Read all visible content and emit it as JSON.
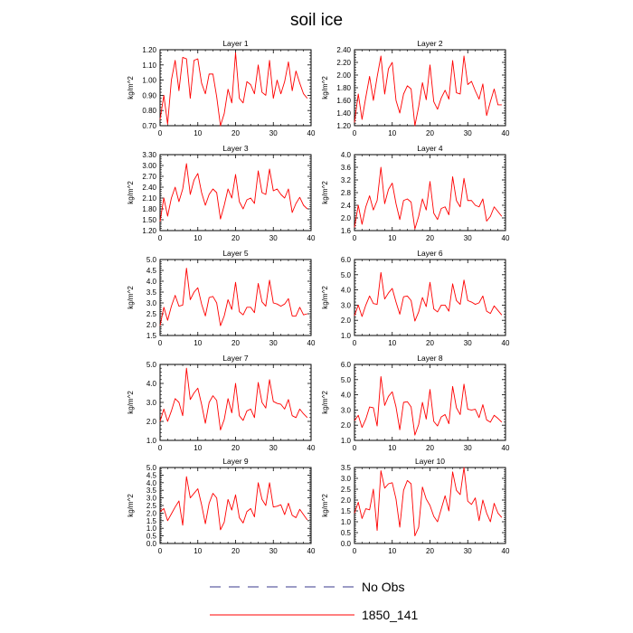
{
  "title": "soil ice",
  "legend": [
    {
      "label": "No Obs",
      "color": "#3a3a8c",
      "dash": true
    },
    {
      "label": "1850_141",
      "color": "#ff0000",
      "dash": false
    }
  ],
  "chart_data": [
    {
      "type": "line",
      "title": "Layer 1",
      "ylabel": "kg/m^2",
      "xlim": [
        0,
        40
      ],
      "ylim": [
        0.7,
        1.2
      ],
      "xticks": [
        0,
        10,
        20,
        30,
        40
      ],
      "yticks": [
        "0.70",
        "0.80",
        "0.90",
        "1.00",
        "1.10",
        "1.20"
      ],
      "series": [
        {
          "name": "1850_141",
          "x": [
            0,
            1,
            2,
            3,
            4,
            5,
            6,
            7,
            8,
            9,
            10,
            11,
            12,
            13,
            14,
            15,
            16,
            17,
            18,
            19,
            20,
            21,
            22,
            23,
            24,
            25,
            26,
            27,
            28,
            29,
            30,
            31,
            32,
            33,
            34,
            35,
            36,
            37,
            38,
            39
          ],
          "values": [
            0.74,
            0.9,
            0.71,
            1.0,
            1.13,
            0.93,
            1.15,
            1.14,
            0.88,
            1.13,
            1.14,
            0.98,
            0.91,
            1.04,
            1.04,
            0.89,
            0.7,
            0.78,
            0.94,
            0.85,
            1.18,
            0.88,
            0.85,
            0.99,
            0.97,
            0.91,
            1.1,
            0.92,
            0.9,
            1.13,
            0.88,
            1.0,
            0.91,
            0.99,
            1.12,
            0.93,
            1.06,
            0.98,
            0.91,
            0.88
          ]
        }
      ]
    },
    {
      "type": "line",
      "title": "Layer 2",
      "ylabel": "kg/m^2",
      "xlim": [
        0,
        40
      ],
      "ylim": [
        1.2,
        2.4
      ],
      "xticks": [
        0,
        10,
        20,
        30,
        40
      ],
      "yticks": [
        "1.20",
        "1.40",
        "1.60",
        "1.80",
        "2.00",
        "2.20",
        "2.40"
      ],
      "series": [
        {
          "name": "1850_141",
          "x": [
            0,
            1,
            2,
            3,
            4,
            5,
            6,
            7,
            8,
            9,
            10,
            11,
            12,
            13,
            14,
            15,
            16,
            17,
            18,
            19,
            20,
            21,
            22,
            23,
            24,
            25,
            26,
            27,
            28,
            29,
            30,
            31,
            32,
            33,
            34,
            35,
            36,
            37,
            38,
            39
          ],
          "values": [
            1.25,
            1.7,
            1.3,
            1.65,
            1.98,
            1.6,
            1.97,
            2.3,
            1.7,
            2.1,
            2.2,
            1.6,
            1.4,
            1.7,
            1.83,
            1.78,
            1.2,
            1.5,
            1.88,
            1.61,
            2.16,
            1.58,
            1.46,
            1.64,
            1.76,
            1.62,
            2.23,
            1.72,
            1.7,
            2.3,
            1.85,
            1.9,
            1.75,
            1.62,
            1.86,
            1.36,
            1.58,
            1.78,
            1.53,
            1.53
          ]
        }
      ]
    },
    {
      "type": "line",
      "title": "Layer 3",
      "ylabel": "kg/m^2",
      "xlim": [
        0,
        40
      ],
      "ylim": [
        1.2,
        3.3
      ],
      "xticks": [
        0,
        10,
        20,
        30,
        40
      ],
      "yticks": [
        "1.20",
        "1.50",
        "1.80",
        "2.10",
        "2.40",
        "2.70",
        "3.00",
        "3.30"
      ],
      "series": [
        {
          "name": "1850_141",
          "x": [
            0,
            1,
            2,
            3,
            4,
            5,
            6,
            7,
            8,
            9,
            10,
            11,
            12,
            13,
            14,
            15,
            16,
            17,
            18,
            19,
            20,
            21,
            22,
            23,
            24,
            25,
            26,
            27,
            28,
            29,
            30,
            31,
            32,
            33,
            34,
            35,
            36,
            37,
            38,
            39
          ],
          "values": [
            1.45,
            2.1,
            1.6,
            2.1,
            2.4,
            2.0,
            2.35,
            3.05,
            2.2,
            2.6,
            2.78,
            2.25,
            1.9,
            2.2,
            2.35,
            2.25,
            1.52,
            1.9,
            2.35,
            2.1,
            2.75,
            2.0,
            1.8,
            2.05,
            2.1,
            1.95,
            2.85,
            2.25,
            2.2,
            2.9,
            2.3,
            2.35,
            2.2,
            2.1,
            2.35,
            1.7,
            1.95,
            2.12,
            1.9,
            1.8
          ]
        }
      ]
    },
    {
      "type": "line",
      "title": "Layer 4",
      "ylabel": "kg/m^2",
      "xlim": [
        0,
        40
      ],
      "ylim": [
        1.6,
        4.0
      ],
      "xticks": [
        0,
        10,
        20,
        30,
        40
      ],
      "yticks": [
        "1.6",
        "2.0",
        "2.4",
        "2.8",
        "3.2",
        "3.6",
        "4.0"
      ],
      "series": [
        {
          "name": "1850_141",
          "x": [
            0,
            1,
            2,
            3,
            4,
            5,
            6,
            7,
            8,
            9,
            10,
            11,
            12,
            13,
            14,
            15,
            16,
            17,
            18,
            19,
            20,
            21,
            22,
            23,
            24,
            25,
            26,
            27,
            28,
            29,
            30,
            31,
            32,
            33,
            34,
            35,
            36,
            37,
            38,
            39
          ],
          "values": [
            1.7,
            2.4,
            1.8,
            2.35,
            2.7,
            2.25,
            2.55,
            3.6,
            2.45,
            2.9,
            3.1,
            2.45,
            1.95,
            2.55,
            2.6,
            2.5,
            1.65,
            2.05,
            2.6,
            2.25,
            3.15,
            2.15,
            1.95,
            2.3,
            2.35,
            2.1,
            3.3,
            2.55,
            2.35,
            3.25,
            2.55,
            2.55,
            2.4,
            2.35,
            2.6,
            1.9,
            2.05,
            2.35,
            2.2,
            2.05
          ]
        }
      ]
    },
    {
      "type": "line",
      "title": "Layer 5",
      "ylabel": "kg/m^2",
      "xlim": [
        0,
        40
      ],
      "ylim": [
        1.5,
        5.0
      ],
      "xticks": [
        0,
        10,
        20,
        30,
        40
      ],
      "yticks": [
        "1.5",
        "2.0",
        "2.5",
        "3.0",
        "3.5",
        "4.0",
        "4.5",
        "5.0"
      ],
      "series": [
        {
          "name": "1850_141",
          "x": [
            0,
            1,
            2,
            3,
            4,
            5,
            6,
            7,
            8,
            9,
            10,
            11,
            12,
            13,
            14,
            15,
            16,
            17,
            18,
            19,
            20,
            21,
            22,
            23,
            24,
            25,
            26,
            27,
            28,
            29,
            30,
            31,
            32,
            33,
            34,
            35,
            36,
            37,
            38,
            39
          ],
          "values": [
            1.95,
            2.8,
            2.2,
            2.85,
            3.35,
            2.85,
            2.9,
            4.6,
            3.15,
            3.5,
            3.7,
            2.95,
            2.4,
            3.25,
            3.3,
            3.0,
            1.95,
            2.4,
            3.15,
            2.7,
            3.95,
            2.6,
            2.45,
            2.8,
            2.8,
            2.55,
            3.9,
            3.05,
            2.85,
            4.05,
            3.0,
            2.95,
            2.85,
            2.95,
            3.2,
            2.4,
            2.4,
            2.8,
            2.45,
            2.5
          ]
        }
      ]
    },
    {
      "type": "line",
      "title": "Layer 6",
      "ylabel": "kg/m^2",
      "xlim": [
        0,
        40
      ],
      "ylim": [
        1.0,
        6.0
      ],
      "xticks": [
        0,
        10,
        20,
        30,
        40
      ],
      "yticks": [
        "1.0",
        "2.0",
        "3.0",
        "4.0",
        "5.0",
        "6.0"
      ],
      "series": [
        {
          "name": "1850_141",
          "x": [
            0,
            1,
            2,
            3,
            4,
            5,
            6,
            7,
            8,
            9,
            10,
            11,
            12,
            13,
            14,
            15,
            16,
            17,
            18,
            19,
            20,
            21,
            22,
            23,
            24,
            25,
            26,
            27,
            28,
            29,
            30,
            31,
            32,
            33,
            34,
            35,
            36,
            37,
            38,
            39
          ],
          "values": [
            2.3,
            3.0,
            2.25,
            3.0,
            3.6,
            3.1,
            3.05,
            5.15,
            3.4,
            3.8,
            4.1,
            3.2,
            2.4,
            3.55,
            3.6,
            3.3,
            1.95,
            2.55,
            3.5,
            2.9,
            4.5,
            2.75,
            2.55,
            3.0,
            3.0,
            2.6,
            4.4,
            3.3,
            3.05,
            4.65,
            3.3,
            3.2,
            3.05,
            3.15,
            3.6,
            2.6,
            2.45,
            2.95,
            2.65,
            2.35
          ]
        }
      ]
    },
    {
      "type": "line",
      "title": "Layer 7",
      "ylabel": "kg/m^2",
      "xlim": [
        0,
        40
      ],
      "ylim": [
        1.0,
        5.0
      ],
      "xticks": [
        0,
        10,
        20,
        30,
        40
      ],
      "yticks": [
        "1.0",
        "2.0",
        "3.0",
        "4.0",
        "5.0"
      ],
      "series": [
        {
          "name": "1850_141",
          "x": [
            0,
            1,
            2,
            3,
            4,
            5,
            6,
            7,
            8,
            9,
            10,
            11,
            12,
            13,
            14,
            15,
            16,
            17,
            18,
            19,
            20,
            21,
            22,
            23,
            24,
            25,
            26,
            27,
            28,
            29,
            30,
            31,
            32,
            33,
            34,
            35,
            36,
            37,
            38,
            39
          ],
          "values": [
            2.0,
            2.65,
            2.0,
            2.55,
            3.2,
            3.0,
            2.3,
            4.8,
            3.15,
            3.5,
            3.75,
            2.9,
            1.9,
            3.0,
            3.35,
            3.1,
            1.55,
            2.1,
            3.2,
            2.45,
            4.0,
            2.3,
            2.05,
            2.55,
            2.65,
            2.2,
            4.05,
            3.0,
            2.7,
            4.2,
            3.05,
            2.95,
            2.9,
            2.65,
            3.15,
            2.3,
            2.2,
            2.65,
            2.4,
            2.2
          ]
        }
      ]
    },
    {
      "type": "line",
      "title": "Layer 8",
      "ylabel": "kg/m^2",
      "xlim": [
        0,
        40
      ],
      "ylim": [
        1.0,
        6.0
      ],
      "xticks": [
        0,
        10,
        20,
        30,
        40
      ],
      "yticks": [
        "1.0",
        "2.0",
        "3.0",
        "4.0",
        "5.0",
        "6.0"
      ],
      "series": [
        {
          "name": "1850_141",
          "x": [
            0,
            1,
            2,
            3,
            4,
            5,
            6,
            7,
            8,
            9,
            10,
            11,
            12,
            13,
            14,
            15,
            16,
            17,
            18,
            19,
            20,
            21,
            22,
            23,
            24,
            25,
            26,
            27,
            28,
            29,
            30,
            31,
            32,
            33,
            34,
            35,
            36,
            37,
            38,
            39
          ],
          "values": [
            2.3,
            2.65,
            1.85,
            2.4,
            3.2,
            3.15,
            1.95,
            5.2,
            3.3,
            3.9,
            4.2,
            3.2,
            1.7,
            3.5,
            3.55,
            3.2,
            1.35,
            2.05,
            3.5,
            2.4,
            4.35,
            2.25,
            1.95,
            2.55,
            2.7,
            2.1,
            4.55,
            3.15,
            2.7,
            4.7,
            3.05,
            3.0,
            3.05,
            2.5,
            3.35,
            2.35,
            2.2,
            2.65,
            2.45,
            2.2
          ]
        }
      ]
    },
    {
      "type": "line",
      "title": "Layer 9",
      "ylabel": "kg/m^2",
      "xlim": [
        0,
        40
      ],
      "ylim": [
        0.0,
        5.0
      ],
      "xticks": [
        0,
        10,
        20,
        30,
        40
      ],
      "yticks": [
        "0.0",
        "0.5",
        "1.0",
        "1.5",
        "2.0",
        "2.5",
        "3.0",
        "3.5",
        "4.0",
        "4.5",
        "5.0"
      ],
      "series": [
        {
          "name": "1850_141",
          "x": [
            0,
            1,
            2,
            3,
            4,
            5,
            6,
            7,
            8,
            9,
            10,
            11,
            12,
            13,
            14,
            15,
            16,
            17,
            18,
            19,
            20,
            21,
            22,
            23,
            24,
            25,
            26,
            27,
            28,
            29,
            30,
            31,
            32,
            33,
            34,
            35,
            36,
            37,
            38,
            39
          ],
          "values": [
            2.1,
            2.3,
            1.5,
            1.95,
            2.4,
            2.8,
            1.2,
            4.4,
            3.0,
            3.3,
            3.6,
            2.55,
            1.3,
            2.65,
            3.3,
            3.0,
            0.9,
            1.4,
            2.9,
            2.2,
            3.2,
            1.7,
            1.35,
            2.1,
            2.3,
            1.75,
            4.0,
            2.9,
            2.5,
            4.0,
            2.4,
            2.45,
            2.55,
            1.9,
            2.65,
            1.85,
            1.7,
            2.25,
            1.9,
            1.55
          ]
        }
      ]
    },
    {
      "type": "line",
      "title": "Layer 10",
      "ylabel": "kg/m^2",
      "xlim": [
        0,
        40
      ],
      "ylim": [
        0.0,
        3.5
      ],
      "xticks": [
        0,
        10,
        20,
        30,
        40
      ],
      "yticks": [
        "0.0",
        "0.5",
        "1.0",
        "1.5",
        "2.0",
        "2.5",
        "3.0",
        "3.5"
      ],
      "series": [
        {
          "name": "1850_141",
          "x": [
            0,
            1,
            2,
            3,
            4,
            5,
            6,
            7,
            8,
            9,
            10,
            11,
            12,
            13,
            14,
            15,
            16,
            17,
            18,
            19,
            20,
            21,
            22,
            23,
            24,
            25,
            26,
            27,
            28,
            29,
            30,
            31,
            32,
            33,
            34,
            35,
            36,
            37,
            38,
            39
          ],
          "values": [
            1.4,
            1.9,
            1.15,
            1.6,
            1.55,
            2.5,
            0.6,
            3.35,
            2.55,
            2.75,
            2.8,
            2.05,
            0.75,
            2.45,
            2.9,
            2.75,
            0.35,
            0.75,
            2.6,
            2.05,
            1.75,
            1.25,
            1.0,
            1.6,
            2.2,
            1.5,
            3.3,
            2.45,
            2.25,
            3.5,
            1.95,
            1.8,
            2.1,
            1.05,
            2.0,
            1.4,
            1.0,
            1.85,
            1.4,
            1.2
          ]
        }
      ]
    }
  ]
}
